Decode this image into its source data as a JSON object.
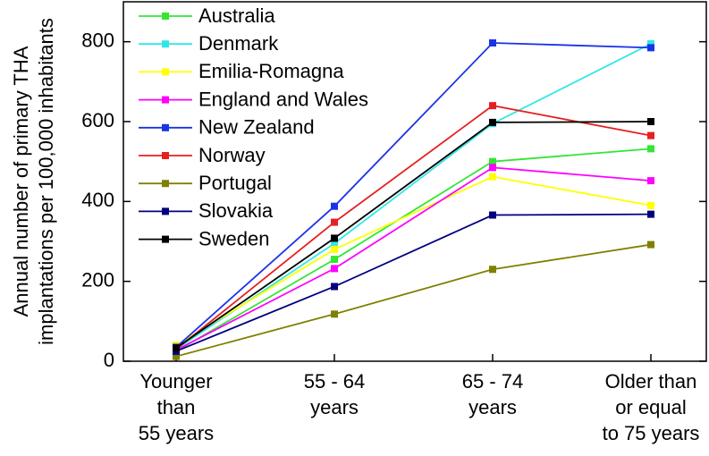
{
  "chart_data": {
    "type": "line",
    "y_label": "Annual number of primary THA\nimplantations per 100,000 inhabitants",
    "categories": [
      "Younger\nthan\n55 years",
      "55 - 64\nyears",
      "65 - 74\nyears",
      "Older than\nor equal\nto 75 years"
    ],
    "ylim": [
      0,
      900
    ],
    "yticks": [
      0,
      200,
      400,
      600,
      800
    ],
    "legend": "top-left",
    "series": [
      {
        "name": "Australia",
        "color": "#33e633",
        "values": [
          25,
          255,
          500,
          532
        ]
      },
      {
        "name": "Denmark",
        "color": "#33e6e6",
        "values": [
          30,
          295,
          595,
          795
        ]
      },
      {
        "name": "Emilia-Romagna",
        "color": "#ffff00",
        "values": [
          40,
          280,
          462,
          390
        ]
      },
      {
        "name": "England and Wales",
        "color": "#ff00ff",
        "values": [
          28,
          232,
          485,
          452
        ]
      },
      {
        "name": "New Zealand",
        "color": "#1a33e6",
        "values": [
          35,
          388,
          797,
          785
        ]
      },
      {
        "name": "Norway",
        "color": "#e62020",
        "values": [
          30,
          348,
          640,
          565
        ]
      },
      {
        "name": "Portugal",
        "color": "#808000",
        "values": [
          12,
          118,
          230,
          292
        ]
      },
      {
        "name": "Slovakia",
        "color": "#00007f",
        "values": [
          25,
          187,
          366,
          368
        ]
      },
      {
        "name": "Sweden",
        "color": "#000000",
        "values": [
          33,
          308,
          598,
          600
        ]
      }
    ]
  }
}
